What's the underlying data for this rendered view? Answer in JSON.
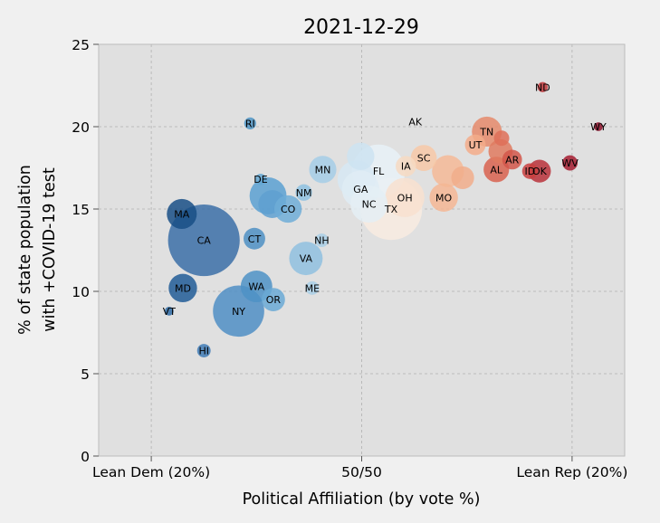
{
  "chart_data": {
    "type": "scatter",
    "title": "2021-12-29",
    "xlabel": "Political Affiliation (by vote %)",
    "ylabel_lines": [
      "% of state population",
      "with +COVID-19 test"
    ],
    "xlim": [
      -25,
      25
    ],
    "ylim": [
      0,
      25
    ],
    "xticks": [
      {
        "value": -20,
        "label": "Lean Dem (20%)"
      },
      {
        "value": 0,
        "label": "50/50"
      },
      {
        "value": 20,
        "label": "Lean Rep (20%)"
      }
    ],
    "yticks": [
      {
        "value": 0,
        "label": "0"
      },
      {
        "value": 5,
        "label": "5"
      },
      {
        "value": 10,
        "label": "10"
      },
      {
        "value": 15,
        "label": "15"
      },
      {
        "value": 20,
        "label": "20"
      },
      {
        "value": 25,
        "label": "25"
      }
    ],
    "grid": true,
    "size_encoding": "state population",
    "color_encoding": "political lean (blue = Dem, red = Rep)",
    "colors": {
      "background": "#f0f0f0",
      "plot_bg": "#e0e0e0",
      "grid": "#b0b0b0",
      "axis": "#bcbcbc",
      "text": "#000000"
    },
    "points": [
      {
        "label": "RI",
        "x": -10.6,
        "y": 20.2,
        "size": 1.1,
        "color": "#4f95c6"
      },
      {
        "label": "DE",
        "x": -9.6,
        "y": 16.8,
        "size": 1.0,
        "color": "#65a8d3"
      },
      {
        "label": "MA",
        "x": -17.1,
        "y": 14.7,
        "size": 6.9,
        "color": "#194f86"
      },
      {
        "label": "CA",
        "x": -15.0,
        "y": 13.1,
        "size": 39.5,
        "color": "#3b6ea7"
      },
      {
        "label": "CT",
        "x": -10.2,
        "y": 13.2,
        "size": 3.6,
        "color": "#4d8fc3"
      },
      {
        "label": "MD",
        "x": -17.0,
        "y": 10.2,
        "size": 6.2,
        "color": "#215c96"
      },
      {
        "label": "VT",
        "x": -18.3,
        "y": 8.8,
        "size": 0.6,
        "color": "#2d6aa4"
      },
      {
        "label": "HI",
        "x": -15.0,
        "y": 6.4,
        "size": 1.4,
        "color": "#3f7bb6"
      },
      {
        "label": "WA",
        "x": -10.0,
        "y": 10.3,
        "size": 7.7,
        "color": "#4e92c6"
      },
      {
        "label": "OR",
        "x": -8.4,
        "y": 9.5,
        "size": 4.2,
        "color": "#6aa9d5"
      },
      {
        "label": "NY",
        "x": -11.7,
        "y": 8.8,
        "size": 20.2,
        "color": "#4f8ec4"
      },
      {
        "label": "CO",
        "x": -7.0,
        "y": 15.0,
        "size": 5.8,
        "color": "#6fadd7"
      },
      {
        "label": "",
        "x": -8.5,
        "y": 15.3,
        "size": 6.0,
        "color": "#5fa0d0"
      },
      {
        "label": "",
        "x": -8.9,
        "y": 15.8,
        "size": 10.5,
        "color": "#5aa0d1"
      },
      {
        "label": "NM",
        "x": -5.5,
        "y": 16.0,
        "size": 2.1,
        "color": "#8ec1e0"
      },
      {
        "label": "NH",
        "x": -3.8,
        "y": 13.1,
        "size": 1.4,
        "color": "#a9cfe6"
      },
      {
        "label": "VA",
        "x": -5.3,
        "y": 12.0,
        "size": 8.6,
        "color": "#8fc0df"
      },
      {
        "label": "ME",
        "x": -4.7,
        "y": 10.2,
        "size": 1.4,
        "color": "#a9cfe6"
      },
      {
        "label": "MN",
        "x": -3.7,
        "y": 17.4,
        "size": 5.7,
        "color": "#a5cde6"
      },
      {
        "label": "",
        "x": -0.1,
        "y": 18.2,
        "size": 5.8,
        "color": "#cde3f1"
      },
      {
        "label": "",
        "x": -0.5,
        "y": 16.8,
        "size": 11.0,
        "color": "#d6e8f3"
      },
      {
        "label": "GA",
        "x": -0.1,
        "y": 16.2,
        "size": 10.8,
        "color": "#dfecf5"
      },
      {
        "label": "NC",
        "x": 0.7,
        "y": 15.3,
        "size": 10.6,
        "color": "#e4eef5"
      },
      {
        "label": "FL",
        "x": 1.6,
        "y": 17.3,
        "size": 21.8,
        "color": "#e8f1f7"
      },
      {
        "label": "TX",
        "x": 2.8,
        "y": 15.0,
        "size": 29.5,
        "color": "#f8ebe1"
      },
      {
        "label": "OH",
        "x": 4.1,
        "y": 15.7,
        "size": 11.8,
        "color": "#f8e0cf"
      },
      {
        "label": "IA",
        "x": 4.2,
        "y": 17.6,
        "size": 3.2,
        "color": "#f6d9c2"
      },
      {
        "label": "SC",
        "x": 5.9,
        "y": 18.1,
        "size": 5.2,
        "color": "#f7c8a7"
      },
      {
        "label": "AK",
        "x": 5.1,
        "y": 20.3,
        "size": 0.7,
        "color": "#e5e5e5"
      },
      {
        "label": "MO",
        "x": 7.8,
        "y": 15.7,
        "size": 6.2,
        "color": "#f4b694"
      },
      {
        "label": "",
        "x": 8.2,
        "y": 17.3,
        "size": 7.8,
        "color": "#f4b897"
      },
      {
        "label": "",
        "x": 9.6,
        "y": 16.9,
        "size": 4.0,
        "color": "#f1ad8b"
      },
      {
        "label": "UT",
        "x": 10.8,
        "y": 18.9,
        "size": 3.3,
        "color": "#f3ac89"
      },
      {
        "label": "TN",
        "x": 11.9,
        "y": 19.7,
        "size": 6.9,
        "color": "#e58a6b"
      },
      {
        "label": "",
        "x": 13.3,
        "y": 19.3,
        "size": 1.8,
        "color": "#de6e58"
      },
      {
        "label": "",
        "x": 13.2,
        "y": 18.5,
        "size": 4.5,
        "color": "#df7a5f"
      },
      {
        "label": "AL",
        "x": 12.8,
        "y": 17.4,
        "size": 5.0,
        "color": "#d8624f"
      },
      {
        "label": "AR",
        "x": 14.3,
        "y": 18.0,
        "size": 3.0,
        "color": "#d2564a"
      },
      {
        "label": "ID",
        "x": 16.0,
        "y": 17.3,
        "size": 1.9,
        "color": "#c8403f"
      },
      {
        "label": "OK",
        "x": 16.9,
        "y": 17.3,
        "size": 4.0,
        "color": "#b9313a"
      },
      {
        "label": "ND",
        "x": 17.2,
        "y": 22.4,
        "size": 0.8,
        "color": "#c33a3d"
      },
      {
        "label": "WV",
        "x": 19.8,
        "y": 17.8,
        "size": 1.8,
        "color": "#a51c30"
      },
      {
        "label": "WY",
        "x": 22.5,
        "y": 20.0,
        "size": 0.6,
        "color": "#8c1029"
      }
    ]
  }
}
